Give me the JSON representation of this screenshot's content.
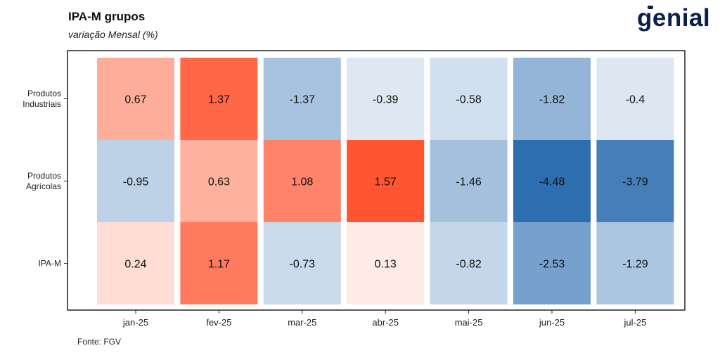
{
  "header": {
    "title": "IPA-M grupos",
    "subtitle": "variação Mensal (%)",
    "logo_text": "genial"
  },
  "footer": {
    "source": "Fonte: FGV"
  },
  "colors": {
    "negative_max": "#2c6eb0",
    "positive_max": "#ff5530",
    "neutral": "#ffffff"
  },
  "chart_data": {
    "type": "heatmap",
    "title": "IPA-M grupos",
    "subtitle": "variação Mensal (%)",
    "x": [
      "jan-25",
      "fev-25",
      "mar-25",
      "abr-25",
      "mai-25",
      "jun-25",
      "jul-25"
    ],
    "y": [
      "Produtos Industriais",
      "Produtos Agrícolas",
      "IPA-M"
    ],
    "values": [
      [
        0.67,
        1.37,
        -1.37,
        -0.39,
        -0.58,
        -1.82,
        -0.4
      ],
      [
        -0.95,
        0.63,
        1.08,
        1.57,
        -1.46,
        -4.48,
        -3.79
      ],
      [
        0.24,
        1.17,
        -0.73,
        0.13,
        -0.82,
        -2.53,
        -1.29
      ]
    ],
    "value_labels": [
      [
        "0.67",
        "1.37",
        "-1.37",
        "-0.39",
        "-0.58",
        "-1.82",
        "-0.4"
      ],
      [
        "-0.95",
        "0.63",
        "1.08",
        "1.57",
        "-1.46",
        "-4.48",
        "-3.79"
      ],
      [
        "0.24",
        "1.17",
        "-0.73",
        "0.13",
        "-0.82",
        "-2.53",
        "-1.29"
      ]
    ],
    "y_label_lines": [
      [
        "Produtos",
        "Industriais"
      ],
      [
        "Produtos",
        "Agrícolas"
      ],
      [
        "IPA-M"
      ]
    ],
    "color_scale": {
      "min": -4.48,
      "max": 1.57
    },
    "grid": false,
    "legend": "none"
  }
}
